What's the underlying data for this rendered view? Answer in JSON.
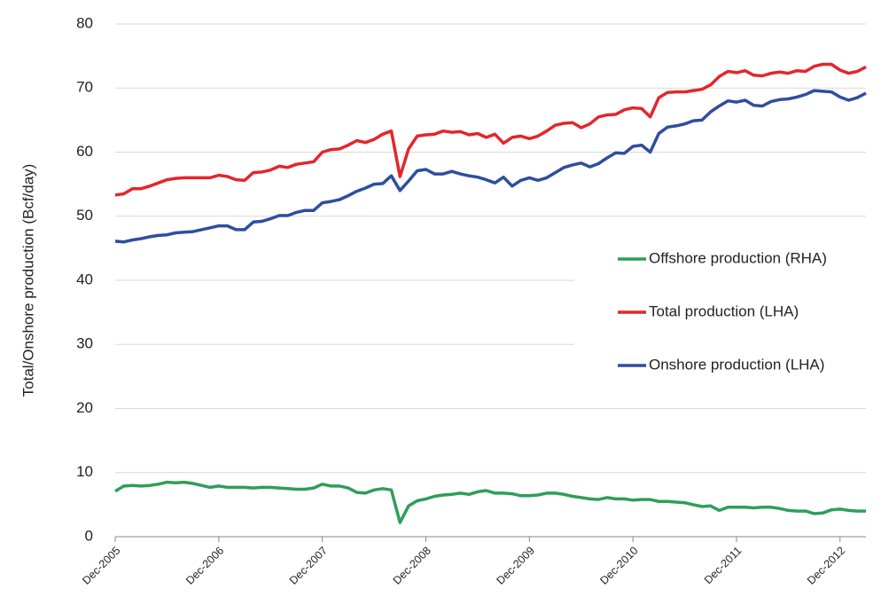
{
  "chart_data": {
    "type": "line",
    "y_label": "Total/Onshore production (Bcf/day)",
    "categories": [
      "Dec-2005",
      null,
      null,
      null,
      null,
      null,
      null,
      null,
      null,
      null,
      null,
      null,
      "Dec-2006",
      null,
      null,
      null,
      null,
      null,
      null,
      null,
      null,
      null,
      null,
      null,
      "Dec-2007",
      null,
      null,
      null,
      null,
      null,
      null,
      null,
      null,
      null,
      null,
      null,
      "Dec-2008",
      null,
      null,
      null,
      null,
      null,
      null,
      null,
      null,
      null,
      null,
      null,
      "Dec-2009",
      null,
      null,
      null,
      null,
      null,
      null,
      null,
      null,
      null,
      null,
      null,
      "Dec-2010",
      null,
      null,
      null,
      null,
      null,
      null,
      null,
      null,
      null,
      null,
      null,
      "Dec-2011",
      null,
      null,
      null,
      null,
      null,
      null,
      null,
      null,
      null,
      null,
      null,
      "Dec-2012",
      null,
      null,
      null
    ],
    "series": [
      {
        "name": "Offshore production (RHA)",
        "color": "#2e9e5b",
        "values": [
          7.1,
          7.9,
          8.0,
          7.9,
          8.0,
          8.2,
          8.5,
          8.4,
          8.5,
          8.3,
          8.0,
          7.7,
          7.9,
          7.7,
          7.7,
          7.7,
          7.6,
          7.7,
          7.7,
          7.6,
          7.5,
          7.4,
          7.4,
          7.6,
          8.2,
          7.9,
          7.9,
          7.6,
          6.9,
          6.8,
          7.3,
          7.5,
          7.3,
          2.2,
          4.8,
          5.6,
          5.9,
          6.3,
          6.5,
          6.6,
          6.8,
          6.6,
          7.0,
          7.2,
          6.8,
          6.8,
          6.7,
          6.4,
          6.4,
          6.5,
          6.8,
          6.8,
          6.6,
          6.3,
          6.1,
          5.9,
          5.8,
          6.1,
          5.9,
          5.9,
          5.7,
          5.8,
          5.8,
          5.5,
          5.5,
          5.4,
          5.3,
          5.0,
          4.7,
          4.8,
          4.1,
          4.6,
          4.6,
          4.6,
          4.5,
          4.6,
          4.6,
          4.4,
          4.1,
          4.0,
          4.0,
          3.6,
          3.7,
          4.2,
          4.3,
          4.1,
          4.0,
          4.0
        ]
      },
      {
        "name": "Total production (LHA)",
        "color": "#e3262b",
        "values": [
          53.3,
          53.5,
          54.3,
          54.3,
          54.7,
          55.2,
          55.7,
          55.9,
          56.0,
          56.0,
          56.0,
          56.0,
          56.4,
          56.2,
          55.7,
          55.6,
          56.8,
          56.9,
          57.2,
          57.8,
          57.6,
          58.1,
          58.3,
          58.5,
          60.0,
          60.4,
          60.5,
          61.1,
          61.8,
          61.5,
          62.0,
          62.8,
          63.3,
          56.2,
          60.5,
          62.5,
          62.7,
          62.8,
          63.3,
          63.1,
          63.2,
          62.7,
          62.9,
          62.3,
          62.8,
          61.4,
          62.3,
          62.5,
          62.1,
          62.5,
          63.3,
          64.2,
          64.5,
          64.6,
          63.8,
          64.4,
          65.5,
          65.8,
          65.9,
          66.6,
          66.9,
          66.8,
          65.5,
          68.5,
          69.3,
          69.4,
          69.4,
          69.6,
          69.8,
          70.5,
          71.8,
          72.6,
          72.4,
          72.7,
          72.0,
          71.9,
          72.3,
          72.5,
          72.3,
          72.7,
          72.6,
          73.4,
          73.7,
          73.7,
          72.8,
          72.3,
          72.6,
          73.3
        ]
      },
      {
        "name": "Onshore production (LHA)",
        "color": "#2e4e9e",
        "values": [
          46.1,
          46.0,
          46.3,
          46.5,
          46.8,
          47.0,
          47.1,
          47.4,
          47.5,
          47.6,
          47.9,
          48.2,
          48.5,
          48.5,
          47.9,
          47.9,
          49.1,
          49.2,
          49.6,
          50.1,
          50.1,
          50.6,
          50.9,
          50.9,
          52.1,
          52.3,
          52.6,
          53.2,
          53.9,
          54.4,
          55.0,
          55.1,
          56.3,
          54.0,
          55.5,
          57.1,
          57.3,
          56.6,
          56.6,
          57.0,
          56.6,
          56.3,
          56.1,
          55.7,
          55.2,
          56.1,
          54.7,
          55.6,
          56.0,
          55.6,
          56.0,
          56.8,
          57.6,
          58.0,
          58.3,
          57.7,
          58.2,
          59.1,
          59.9,
          59.8,
          60.9,
          61.1,
          60.0,
          62.9,
          63.9,
          64.1,
          64.4,
          64.9,
          65.0,
          66.3,
          67.2,
          68.0,
          67.8,
          68.1,
          67.3,
          67.2,
          67.9,
          68.2,
          68.3,
          68.6,
          69.0,
          69.6,
          69.5,
          69.4,
          68.6,
          68.1,
          68.5,
          69.2
        ]
      }
    ],
    "ylim": [
      0,
      80
    ],
    "yticks": [
      0,
      10,
      20,
      30,
      40,
      50,
      60,
      70,
      80
    ],
    "grid": true
  }
}
